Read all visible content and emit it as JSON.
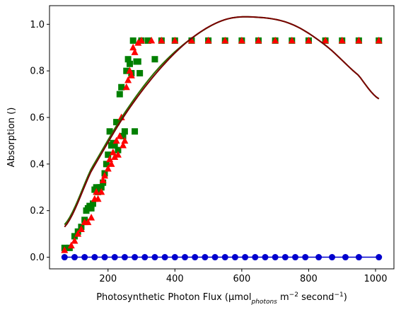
{
  "chart_data": {
    "type": "scatter",
    "title": "",
    "xlabel": {
      "prefix": "Photosynthetic Photon Flux (µmol",
      "sub": "photons",
      "mid": " m",
      "sup1": "−2",
      "mid2": " second",
      "sup2": "−1",
      "suffix": ")"
    },
    "ylabel": "Absorption ()",
    "xlim": [
      25,
      1055
    ],
    "ylim": [
      -0.05,
      1.08
    ],
    "xticks": [
      200,
      400,
      600,
      800,
      1000
    ],
    "yticks": [
      0.0,
      0.2,
      0.4,
      0.6,
      0.8,
      1.0
    ],
    "xtick_labels": [
      "200",
      "400",
      "600",
      "800",
      "1000"
    ],
    "ytick_labels": [
      "0.0",
      "0.2",
      "0.4",
      "0.6",
      "0.8",
      "1.0"
    ],
    "grid": false,
    "legend": "none",
    "series": [
      {
        "marker": "square",
        "color": "#008000",
        "points": [
          [
            70,
            0.04
          ],
          [
            85,
            0.04
          ],
          [
            100,
            0.09
          ],
          [
            110,
            0.11
          ],
          [
            120,
            0.13
          ],
          [
            130,
            0.16
          ],
          [
            135,
            0.2
          ],
          [
            140,
            0.21
          ],
          [
            145,
            0.22
          ],
          [
            150,
            0.21
          ],
          [
            155,
            0.23
          ],
          [
            160,
            0.29
          ],
          [
            165,
            0.3
          ],
          [
            170,
            0.28
          ],
          [
            175,
            0.3
          ],
          [
            180,
            0.3
          ],
          [
            185,
            0.32
          ],
          [
            190,
            0.36
          ],
          [
            195,
            0.4
          ],
          [
            200,
            0.44
          ],
          [
            205,
            0.54
          ],
          [
            210,
            0.48
          ],
          [
            215,
            0.49
          ],
          [
            220,
            0.48
          ],
          [
            225,
            0.58
          ],
          [
            230,
            0.46
          ],
          [
            235,
            0.7
          ],
          [
            240,
            0.73
          ],
          [
            245,
            0.52
          ],
          [
            250,
            0.54
          ],
          [
            255,
            0.8
          ],
          [
            260,
            0.85
          ],
          [
            265,
            0.83
          ],
          [
            270,
            0.79
          ],
          [
            275,
            0.93
          ],
          [
            280,
            0.54
          ],
          [
            285,
            0.84
          ],
          [
            290,
            0.84
          ],
          [
            295,
            0.79
          ],
          [
            300,
            0.93
          ],
          [
            320,
            0.93
          ],
          [
            340,
            0.85
          ],
          [
            360,
            0.93
          ],
          [
            400,
            0.93
          ],
          [
            450,
            0.93
          ],
          [
            500,
            0.93
          ],
          [
            550,
            0.93
          ],
          [
            600,
            0.93
          ],
          [
            650,
            0.93
          ],
          [
            700,
            0.93
          ],
          [
            750,
            0.93
          ],
          [
            800,
            0.93
          ],
          [
            850,
            0.93
          ],
          [
            900,
            0.93
          ],
          [
            950,
            0.93
          ],
          [
            1010,
            0.93
          ]
        ]
      },
      {
        "marker": "triangle",
        "color": "#ff0000",
        "points": [
          [
            70,
            0.03
          ],
          [
            90,
            0.05
          ],
          [
            100,
            0.07
          ],
          [
            110,
            0.1
          ],
          [
            120,
            0.12
          ],
          [
            130,
            0.15
          ],
          [
            140,
            0.15
          ],
          [
            150,
            0.17
          ],
          [
            160,
            0.25
          ],
          [
            165,
            0.28
          ],
          [
            170,
            0.25
          ],
          [
            180,
            0.28
          ],
          [
            185,
            0.33
          ],
          [
            190,
            0.35
          ],
          [
            200,
            0.38
          ],
          [
            205,
            0.42
          ],
          [
            210,
            0.4
          ],
          [
            215,
            0.45
          ],
          [
            220,
            0.43
          ],
          [
            225,
            0.5
          ],
          [
            230,
            0.44
          ],
          [
            235,
            0.52
          ],
          [
            240,
            0.6
          ],
          [
            245,
            0.48
          ],
          [
            250,
            0.5
          ],
          [
            255,
            0.73
          ],
          [
            260,
            0.76
          ],
          [
            265,
            0.8
          ],
          [
            270,
            0.78
          ],
          [
            275,
            0.9
          ],
          [
            280,
            0.88
          ],
          [
            290,
            0.92
          ],
          [
            300,
            0.93
          ],
          [
            330,
            0.93
          ],
          [
            360,
            0.93
          ],
          [
            400,
            0.93
          ],
          [
            450,
            0.93
          ],
          [
            500,
            0.93
          ],
          [
            550,
            0.93
          ],
          [
            600,
            0.93
          ],
          [
            650,
            0.93
          ],
          [
            700,
            0.93
          ],
          [
            750,
            0.93
          ],
          [
            800,
            0.93
          ],
          [
            850,
            0.93
          ],
          [
            900,
            0.93
          ],
          [
            950,
            0.93
          ],
          [
            1010,
            0.93
          ]
        ]
      },
      {
        "marker": "circle",
        "color": "#0000cd",
        "points": [
          [
            70,
            0.0
          ],
          [
            100,
            0.0
          ],
          [
            130,
            0.0
          ],
          [
            160,
            0.0
          ],
          [
            190,
            0.0
          ],
          [
            220,
            0.0
          ],
          [
            250,
            0.0
          ],
          [
            280,
            0.0
          ],
          [
            310,
            0.0
          ],
          [
            340,
            0.0
          ],
          [
            370,
            0.0
          ],
          [
            400,
            0.0
          ],
          [
            430,
            0.0
          ],
          [
            460,
            0.0
          ],
          [
            490,
            0.0
          ],
          [
            520,
            0.0
          ],
          [
            550,
            0.0
          ],
          [
            580,
            0.0
          ],
          [
            610,
            0.0
          ],
          [
            640,
            0.0
          ],
          [
            670,
            0.0
          ],
          [
            700,
            0.0
          ],
          [
            730,
            0.0
          ],
          [
            760,
            0.0
          ],
          [
            790,
            0.0
          ],
          [
            830,
            0.0
          ],
          [
            870,
            0.0
          ],
          [
            910,
            0.0
          ],
          [
            950,
            0.0
          ],
          [
            1010,
            0.0
          ]
        ]
      }
    ],
    "curves": [
      {
        "color": "#2e6b00",
        "x": [
          70,
          150,
          250,
          350,
          450,
          550,
          650,
          750,
          850,
          950,
          1010
        ],
        "y": [
          0.14,
          0.38,
          0.62,
          0.81,
          0.94,
          1.02,
          1.03,
          1.0,
          0.91,
          0.78,
          0.68
        ]
      },
      {
        "color": "#7a0000",
        "x": [
          70,
          150,
          250,
          350,
          450,
          550,
          650,
          750,
          850,
          950,
          1010
        ],
        "y": [
          0.13,
          0.37,
          0.61,
          0.8,
          0.94,
          1.02,
          1.03,
          1.0,
          0.91,
          0.78,
          0.68
        ]
      }
    ]
  }
}
